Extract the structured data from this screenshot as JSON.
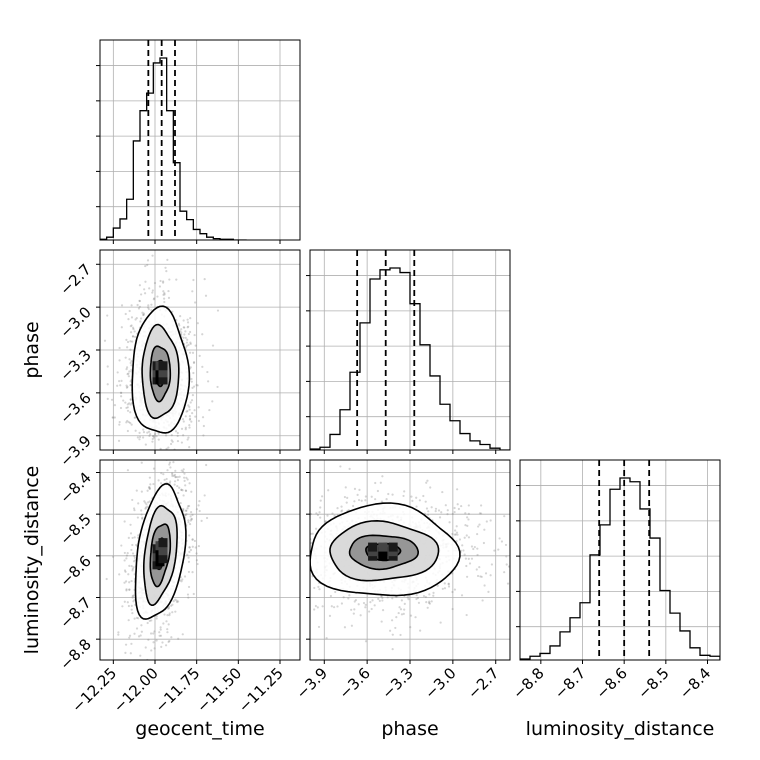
{
  "chart_data": {
    "type": "corner",
    "parameters": [
      "geocent_time",
      "phase",
      "luminosity_distance"
    ],
    "ranges": {
      "geocent_time": [
        -12.33,
        -11.13
      ],
      "phase": [
        -4.0,
        -2.6
      ],
      "luminosity_distance": [
        -8.85,
        -8.37
      ]
    },
    "ticks": {
      "geocent_time": [
        -12.25,
        -12.0,
        -11.75,
        -11.5,
        -11.25
      ],
      "phase": [
        -3.9,
        -3.6,
        -3.3,
        -3.0,
        -2.7
      ],
      "luminosity_distance": [
        -8.8,
        -8.7,
        -8.6,
        -8.5,
        -8.4
      ]
    },
    "tick_labels": {
      "geocent_time": [
        "−12.25",
        "−12.00",
        "−11.75",
        "−11.50",
        "−11.25"
      ],
      "phase": [
        "−3.9",
        "−3.6",
        "−3.3",
        "−3.0",
        "−2.7"
      ],
      "luminosity_distance": [
        "−8.8",
        "−8.7",
        "−8.6",
        "−8.5",
        "−8.4"
      ]
    },
    "axis_labels": {
      "geocent_time": "geocent_time",
      "phase": "phase",
      "luminosity_distance": "luminosity_distance"
    },
    "quantiles": {
      "geocent_time": [
        -12.04,
        -11.96,
        -11.88
      ],
      "phase": [
        -3.67,
        -3.47,
        -3.27
      ],
      "luminosity_distance": [
        -8.66,
        -8.6,
        -8.54
      ]
    },
    "histograms": {
      "geocent_time": {
        "edges": [
          -12.33,
          -12.29,
          -12.25,
          -12.21,
          -12.17,
          -12.13,
          -12.09,
          -12.05,
          -12.01,
          -11.97,
          -11.93,
          -11.89,
          -11.85,
          -11.81,
          -11.77,
          -11.73,
          -11.69,
          -11.65,
          -11.61,
          -11.57,
          -11.53,
          -11.49,
          -11.45
        ],
        "counts": [
          1,
          4,
          17,
          30,
          58,
          141,
          184,
          209,
          252,
          259,
          184,
          110,
          41,
          29,
          15,
          9,
          4,
          2,
          1,
          1,
          0,
          0
        ]
      },
      "phase": {
        "edges": [
          -4.0,
          -3.93,
          -3.86,
          -3.79,
          -3.72,
          -3.65,
          -3.58,
          -3.51,
          -3.44,
          -3.37,
          -3.3,
          -3.23,
          -3.16,
          -3.09,
          -3.02,
          -2.95,
          -2.88,
          -2.81,
          -2.74,
          -2.67,
          -2.6
        ],
        "counts": [
          1,
          3,
          17,
          44,
          85,
          139,
          187,
          197,
          199,
          194,
          160,
          115,
          81,
          50,
          32,
          18,
          10,
          6,
          2,
          0
        ]
      },
      "luminosity_distance": {
        "edges": [
          -8.85,
          -8.826,
          -8.802,
          -8.778,
          -8.754,
          -8.73,
          -8.706,
          -8.682,
          -8.658,
          -8.634,
          -8.61,
          -8.586,
          -8.562,
          -8.538,
          -8.514,
          -8.49,
          -8.466,
          -8.442,
          -8.418,
          -8.394,
          -8.37
        ],
        "counts": [
          1,
          4,
          7,
          15,
          30,
          45,
          61,
          112,
          144,
          182,
          194,
          190,
          161,
          130,
          74,
          50,
          31,
          13,
          5,
          4
        ]
      }
    },
    "contours_2d": {
      "phase_vs_geocent_time": {
        "center": [
          -11.97,
          -3.46
        ],
        "levels": [
          {
            "half_width": [
              0.03,
              0.09
            ],
            "tilt": 0
          },
          {
            "half_width": [
              0.06,
              0.19
            ],
            "tilt": 0
          },
          {
            "half_width": [
              0.11,
              0.32
            ],
            "tilt": 0
          },
          {
            "half_width": [
              0.17,
              0.44
            ],
            "tilt": 0
          }
        ]
      },
      "luminosity_distance_vs_geocent_time": {
        "center": [
          -11.97,
          -8.595
        ],
        "levels": [
          {
            "half_width": [
              0.03,
              0.035
            ],
            "tilt": 0.35
          },
          {
            "half_width": [
              0.06,
              0.07
            ],
            "tilt": 0.35
          },
          {
            "half_width": [
              0.1,
              0.11
            ],
            "tilt": 0.35
          },
          {
            "half_width": [
              0.15,
              0.15
            ],
            "tilt": 0.35
          }
        ]
      },
      "luminosity_distance_vs_phase": {
        "center": [
          -3.49,
          -8.59
        ],
        "levels": [
          {
            "half_width": [
              0.12,
              0.02
            ],
            "tilt": 0
          },
          {
            "half_width": [
              0.24,
              0.04
            ],
            "tilt": 0
          },
          {
            "half_width": [
              0.38,
              0.07
            ],
            "tilt": 0
          },
          {
            "half_width": [
              0.52,
              0.11
            ],
            "tilt": 0
          }
        ]
      }
    },
    "grid": true,
    "title": "",
    "legend": ""
  }
}
